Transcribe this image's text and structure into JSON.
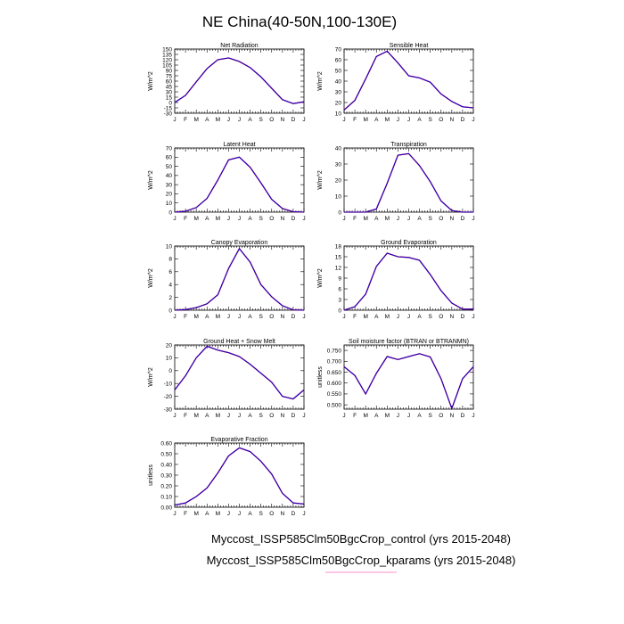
{
  "figure_title": "NE China(40-50N,100-130E)",
  "legend": [
    {
      "label": "Myccost_ISSP585Clm50BgcCrop_control (yrs 2015-2048)",
      "color": "#1a1aa0"
    },
    {
      "label": "Myccost_ISSP585Clm50BgcCrop_kparams (yrs 2015-2048)",
      "color": "#ff69b4"
    }
  ],
  "colors": {
    "control": "#2200cc",
    "kparams": "#cc0000"
  },
  "chart_data": [
    {
      "type": "line",
      "title": "Net Radiation",
      "ylabel": "W/m^2",
      "categories": [
        "J",
        "F",
        "M",
        "A",
        "M",
        "J",
        "J",
        "A",
        "S",
        "O",
        "N",
        "D",
        "J"
      ],
      "yticks": [
        -30,
        -15,
        0,
        15,
        30,
        45,
        60,
        75,
        90,
        105,
        120,
        135,
        150
      ],
      "ylim": [
        -30,
        150
      ],
      "series": [
        {
          "values": [
            0,
            20,
            58,
            95,
            120,
            125,
            115,
            98,
            72,
            40,
            8,
            -3,
            2
          ]
        }
      ]
    },
    {
      "type": "line",
      "title": "Sensible Heat",
      "ylabel": "W/m^2",
      "categories": [
        "J",
        "F",
        "M",
        "A",
        "M",
        "J",
        "J",
        "A",
        "S",
        "O",
        "N",
        "D",
        "J"
      ],
      "yticks": [
        10,
        20,
        30,
        40,
        50,
        60,
        70
      ],
      "ylim": [
        10,
        70
      ],
      "series": [
        {
          "values": [
            13,
            22,
            42,
            63,
            68,
            57,
            45,
            43,
            39,
            28,
            21,
            16,
            15
          ]
        }
      ]
    },
    {
      "type": "line",
      "title": "Latent Heat",
      "ylabel": "W/m^2",
      "categories": [
        "J",
        "F",
        "M",
        "A",
        "M",
        "J",
        "J",
        "A",
        "S",
        "O",
        "N",
        "D",
        "J"
      ],
      "yticks": [
        0,
        10,
        20,
        30,
        40,
        50,
        60,
        70
      ],
      "ylim": [
        0,
        70
      ],
      "series": [
        {
          "values": [
            0,
            1,
            5,
            15,
            35,
            57,
            60,
            49,
            32,
            14,
            4,
            0.5,
            0
          ]
        }
      ]
    },
    {
      "type": "line",
      "title": "Transpiration",
      "ylabel": "W/m^2",
      "categories": [
        "J",
        "F",
        "M",
        "A",
        "M",
        "J",
        "J",
        "A",
        "S",
        "O",
        "N",
        "D",
        "J"
      ],
      "yticks": [
        0,
        10,
        20,
        30,
        40
      ],
      "ylim": [
        0,
        40
      ],
      "series": [
        {
          "values": [
            0,
            0,
            0,
            2,
            18,
            35.5,
            36.5,
            29,
            19,
            7,
            1,
            0,
            0
          ]
        }
      ]
    },
    {
      "type": "line",
      "title": "Canopy Evaporation",
      "ylabel": "W/m^2",
      "categories": [
        "J",
        "F",
        "M",
        "A",
        "M",
        "J",
        "J",
        "A",
        "S",
        "O",
        "N",
        "D",
        "J"
      ],
      "yticks": [
        0,
        2,
        4,
        6,
        8,
        10
      ],
      "ylim": [
        0,
        10
      ],
      "series": [
        {
          "values": [
            0,
            0.1,
            0.4,
            1,
            2.4,
            6.5,
            9.6,
            7.5,
            4,
            2.1,
            0.7,
            0.05,
            0
          ]
        }
      ]
    },
    {
      "type": "line",
      "title": "Ground Evaporation",
      "ylabel": "W/m^2",
      "categories": [
        "J",
        "F",
        "M",
        "A",
        "M",
        "J",
        "J",
        "A",
        "S",
        "O",
        "N",
        "D",
        "J"
      ],
      "yticks": [
        0,
        3,
        6,
        9,
        12,
        15,
        18
      ],
      "ylim": [
        0,
        18
      ],
      "series": [
        {
          "values": [
            0,
            1,
            4.5,
            12.3,
            16,
            15,
            14.8,
            14,
            10,
            5.5,
            2,
            0.3,
            0.3
          ]
        }
      ]
    },
    {
      "type": "line",
      "title": "Ground Heat + Snow Melt",
      "ylabel": "W/m^2",
      "categories": [
        "J",
        "F",
        "M",
        "A",
        "M",
        "J",
        "J",
        "A",
        "S",
        "O",
        "N",
        "D",
        "J"
      ],
      "yticks": [
        -30,
        -20,
        -10,
        0,
        10,
        20
      ],
      "ylim": [
        -30,
        20
      ],
      "series": [
        {
          "values": [
            -15,
            -4,
            10,
            19,
            16,
            14,
            11,
            5,
            -2,
            -9,
            -20,
            -22,
            -15
          ]
        }
      ]
    },
    {
      "type": "line",
      "title": "Soil moisture factor (BTRAN or BTRANMN)",
      "ylabel": "unitless",
      "categories": [
        "J",
        "F",
        "M",
        "A",
        "M",
        "J",
        "J",
        "A",
        "S",
        "O",
        "N",
        "D",
        "J"
      ],
      "yticks": [
        0.5,
        0.55,
        0.6,
        0.65,
        0.7,
        0.75
      ],
      "ytick_labels": [
        "0.500",
        "0.550",
        "0.600",
        "0.650",
        "0.700",
        "0.750"
      ],
      "ylim": [
        0.48,
        0.775
      ],
      "series": [
        {
          "values": [
            0.675,
            0.635,
            0.55,
            0.645,
            0.722,
            0.708,
            0.722,
            0.735,
            0.72,
            0.62,
            0.483,
            0.62,
            0.675
          ]
        }
      ]
    },
    {
      "type": "line",
      "title": "Evaporative Fraction",
      "ylabel": "unitless",
      "categories": [
        "J",
        "F",
        "M",
        "A",
        "M",
        "J",
        "J",
        "A",
        "S",
        "O",
        "N",
        "D",
        "J"
      ],
      "yticks": [
        0,
        0.1,
        0.2,
        0.3,
        0.4,
        0.5,
        0.6
      ],
      "ytick_labels": [
        "0.00",
        "0.10",
        "0.20",
        "0.30",
        "0.40",
        "0.50",
        "0.60"
      ],
      "ylim": [
        0,
        0.6
      ],
      "series": [
        {
          "values": [
            0.02,
            0.04,
            0.1,
            0.18,
            0.32,
            0.48,
            0.555,
            0.52,
            0.43,
            0.31,
            0.13,
            0.04,
            0.03
          ]
        }
      ]
    }
  ]
}
